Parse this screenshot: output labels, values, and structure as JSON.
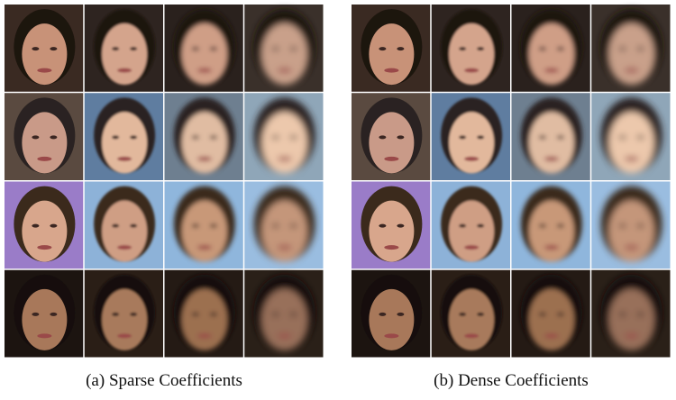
{
  "figure": {
    "panels": [
      {
        "caption": "(a) Sparse Coefficients"
      },
      {
        "caption": "(b) Dense Coefficients"
      }
    ]
  }
}
